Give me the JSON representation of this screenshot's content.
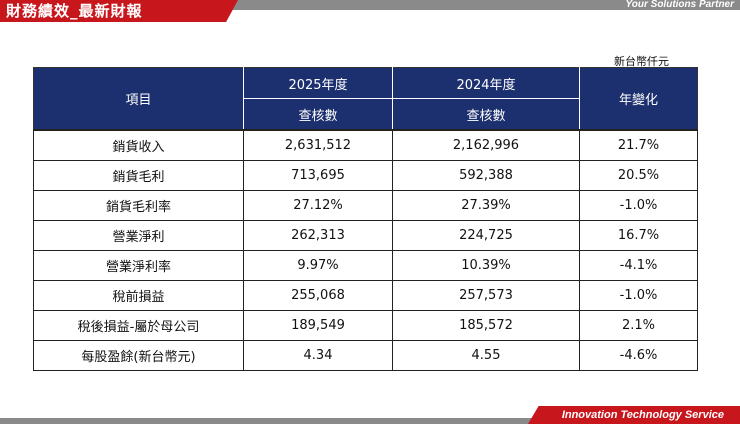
{
  "header": {
    "title": "財務績效_最新財報",
    "tagline": "Your Solutions Partner"
  },
  "unit_note": "新台幣仟元",
  "table": {
    "col_item": "項目",
    "col_2025": "2025年度",
    "col_2024": "2024年度",
    "sub_2025": "查核數",
    "sub_2024": "查核數",
    "col_change": "年變化",
    "rows": [
      {
        "item": "銷貨收入",
        "y2025": "2,631,512",
        "y2024": "2,162,996",
        "change": "21.7%"
      },
      {
        "item": "銷貨毛利",
        "y2025": "713,695",
        "y2024": "592,388",
        "change": "20.5%"
      },
      {
        "item": "銷貨毛利率",
        "y2025": "27.12%",
        "y2024": "27.39%",
        "change": "-1.0%"
      },
      {
        "item": "營業淨利",
        "y2025": "262,313",
        "y2024": "224,725",
        "change": "16.7%"
      },
      {
        "item": "營業淨利率",
        "y2025": "9.97%",
        "y2024": "10.39%",
        "change": "-4.1%"
      },
      {
        "item": "稅前損益",
        "y2025": "255,068",
        "y2024": "257,573",
        "change": "-1.0%"
      },
      {
        "item": "稅後損益-屬於母公司",
        "y2025": "189,549",
        "y2024": "185,572",
        "change": "2.1%"
      },
      {
        "item": "每股盈餘(新台幣元)",
        "y2025": "4.34",
        "y2024": "4.55",
        "change": "-4.6%"
      }
    ]
  },
  "footer": {
    "tagline": "Innovation  Technology  Service"
  },
  "colors": {
    "brand_red": "#c8161d",
    "header_navy": "#1c2f6e",
    "band_gray": "#8a8a8a"
  }
}
